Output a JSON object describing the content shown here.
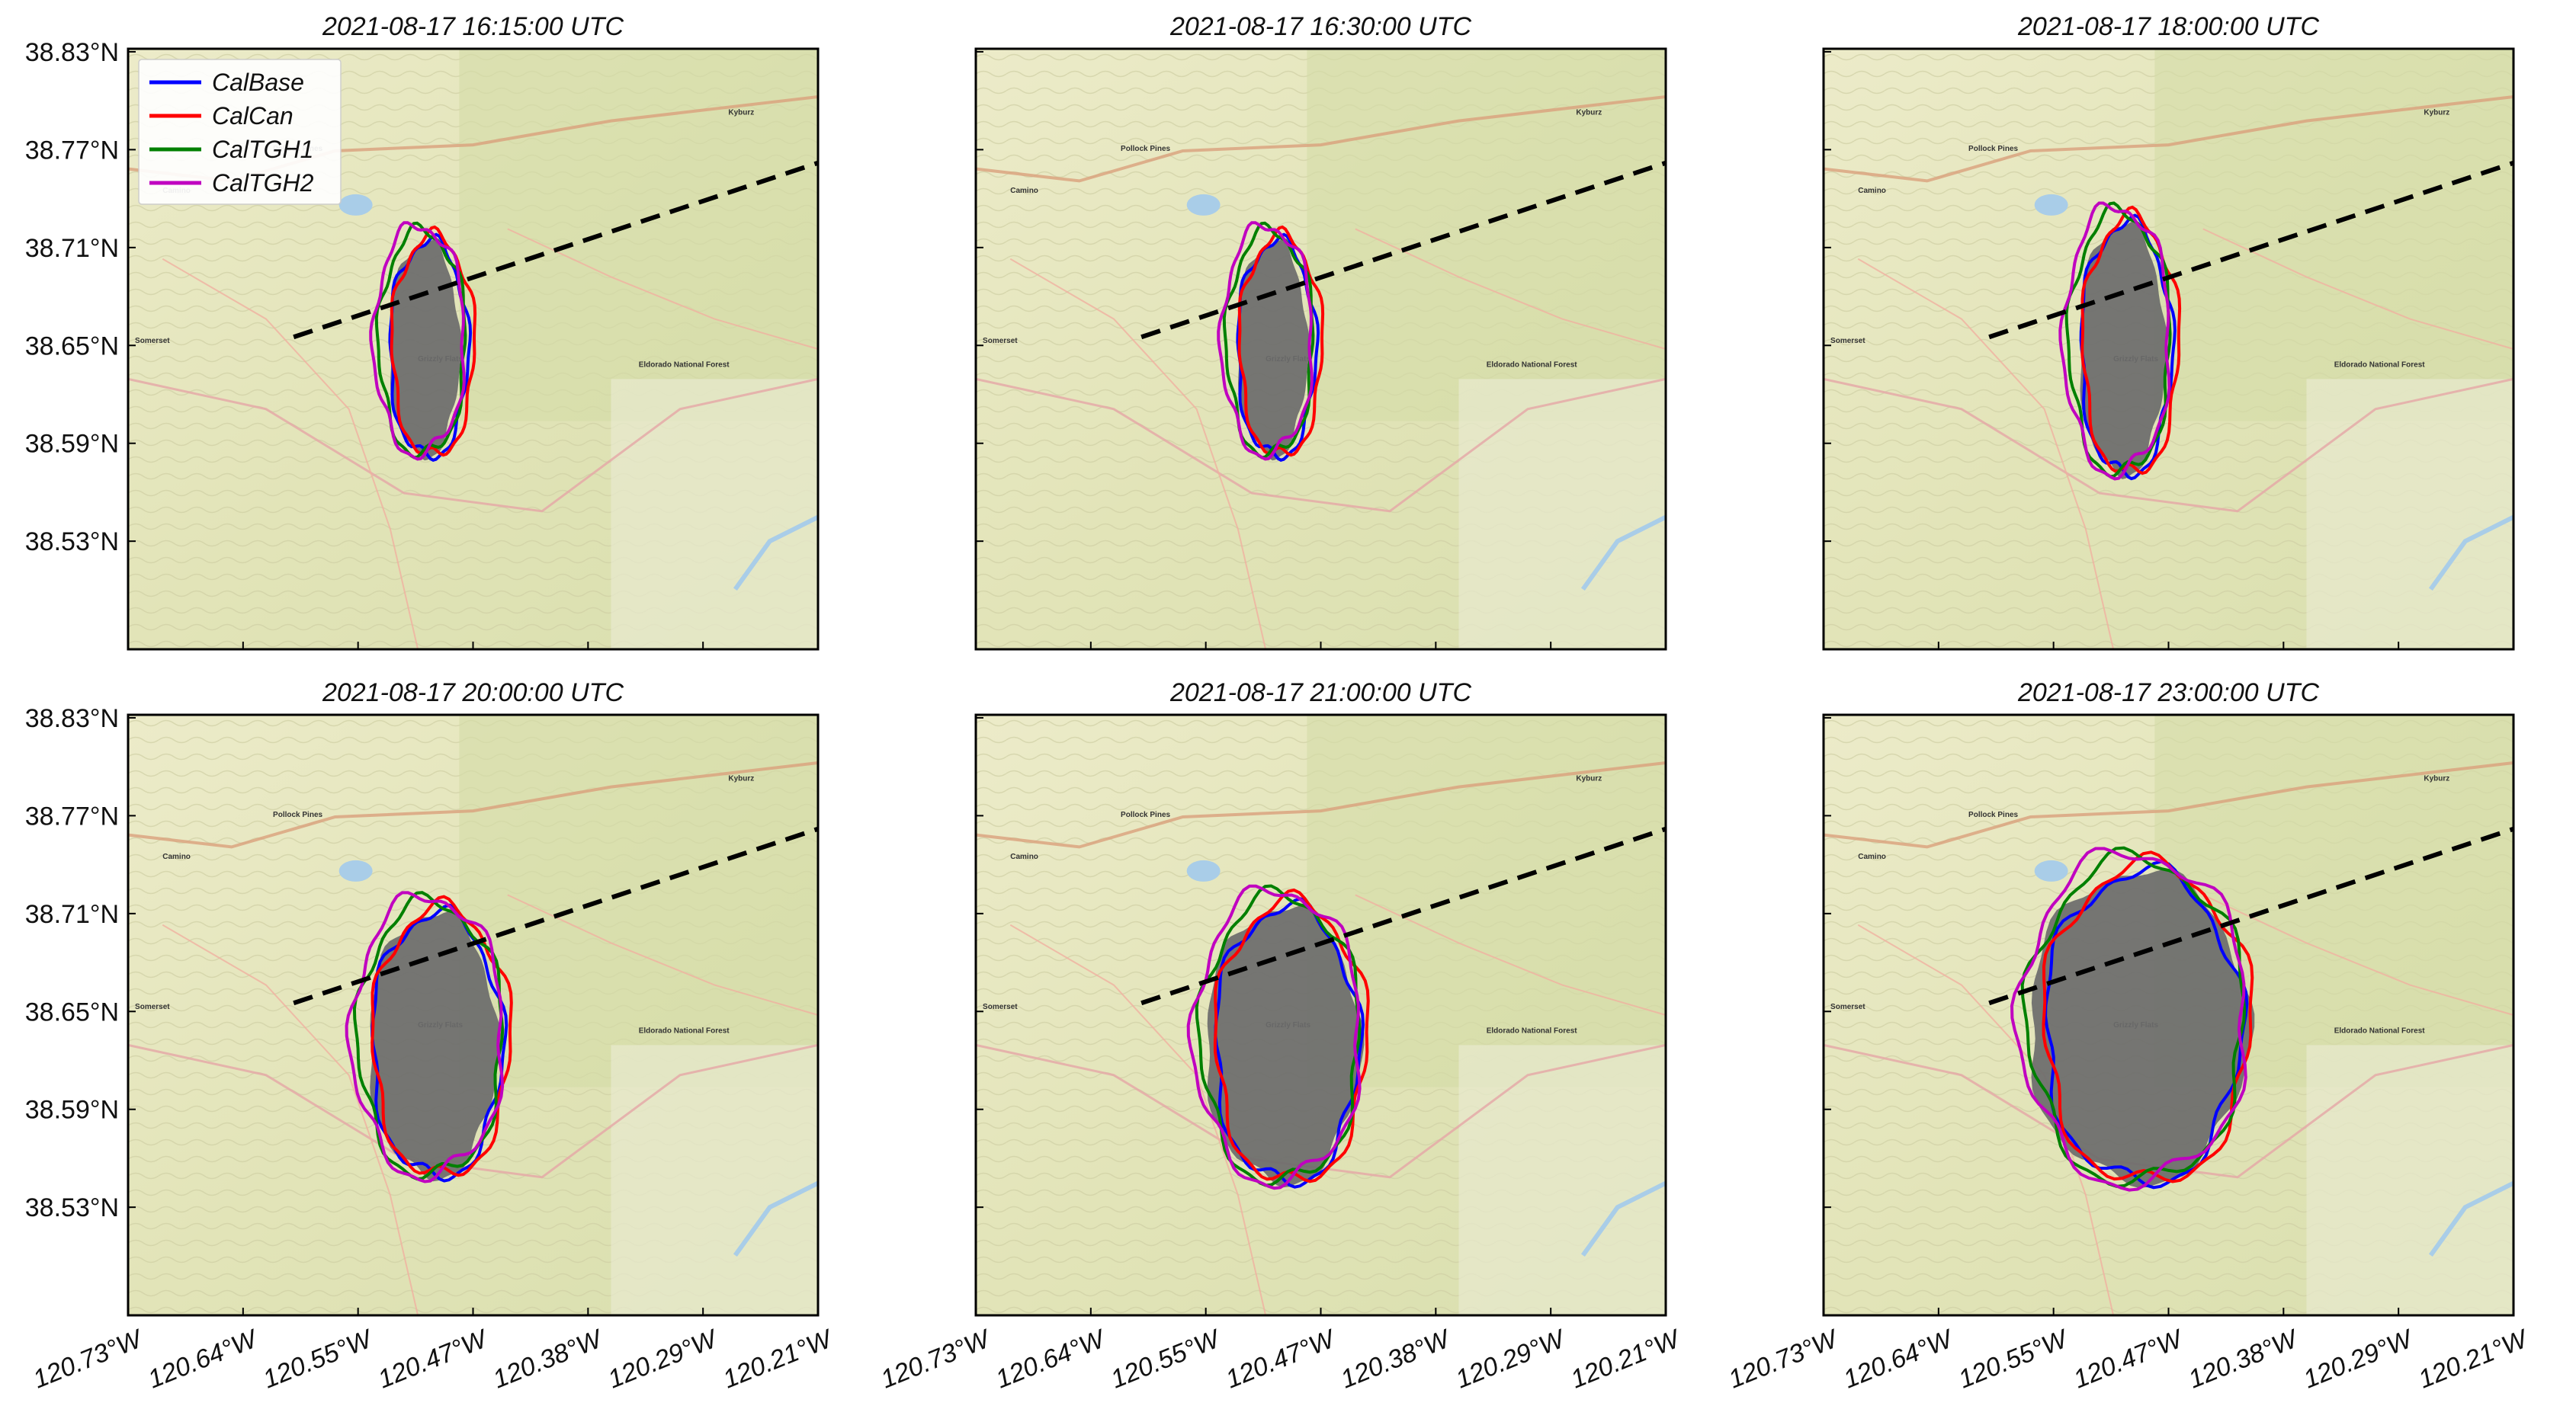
{
  "chart_data": {
    "type": "map-small-multiples",
    "panels": [
      {
        "title": "2021-08-17 16:15:00 UTC"
      },
      {
        "title": "2021-08-17 16:30:00 UTC"
      },
      {
        "title": "2021-08-17 18:00:00 UTC"
      },
      {
        "title": "2021-08-17 20:00:00 UTC"
      },
      {
        "title": "2021-08-17 21:00:00 UTC"
      },
      {
        "title": "2021-08-17 23:00:00 UTC"
      }
    ],
    "y_ticks": [
      "38.83°N",
      "38.77°N",
      "38.71°N",
      "38.65°N",
      "38.59°N",
      "38.53°N"
    ],
    "x_ticks": [
      "120.73°W",
      "120.64°W",
      "120.55°W",
      "120.47°W",
      "120.38°W",
      "120.29°W",
      "120.21°W"
    ],
    "legend": {
      "placement": "top-left",
      "entries": [
        {
          "name": "CalBase",
          "color": "#0000ff"
        },
        {
          "name": "CalCan",
          "color": "#ff0000"
        },
        {
          "name": "CalTGH1",
          "color": "#008000"
        },
        {
          "name": "CalTGH2",
          "color": "#c000c0"
        }
      ]
    },
    "observed_fire_color": "#6b6b6b",
    "cross_section_line": {
      "style": "dashed",
      "color": "#000000"
    },
    "map_labels": [
      "Kyburz",
      "Pollock Pines",
      "Camino",
      "Somerset",
      "Grizzly Flats",
      "Eldorado National Forest"
    ]
  }
}
